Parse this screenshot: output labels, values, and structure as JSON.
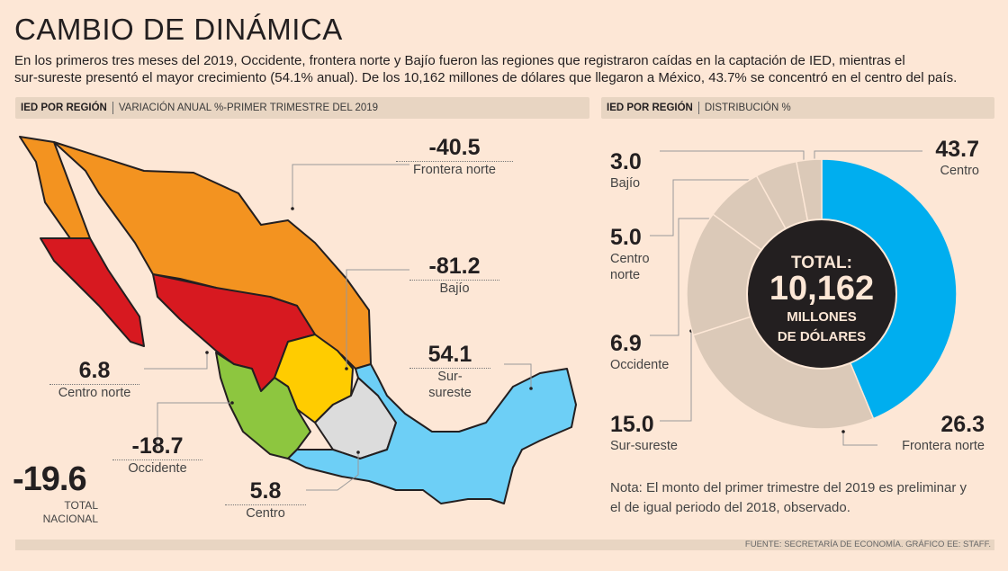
{
  "header": {
    "title": "CAMBIO DE DINÁMICA",
    "subtitle_line1": "En los primeros tres meses del 2019, Occidente, frontera norte y Bajío fueron las regiones que registraron caídas en la captación de IED, mientras el",
    "subtitle_line2": "sur-sureste presentó el mayor crecimiento (54.1% anual). De los 10,162 millones de dólares que llegaron a México, 43.7% se concentró en el centro del país."
  },
  "left_section": {
    "bold": "IED POR REGIÓN",
    "label": "VARIACIÓN ANUAL %-PRIMER TRIMESTRE DEL 2019"
  },
  "right_section": {
    "bold": "IED POR REGIÓN",
    "label": "DISTRIBUCIÓN %"
  },
  "colors": {
    "frontera_norte": "#f39320",
    "centro_norte": "#d71920",
    "bajio": "#ffcc00",
    "occidente": "#8dc63f",
    "centro": "#dcdcdc",
    "sur_sureste": "#6dcff6",
    "donut_highlight": "#00aeef",
    "donut_other": "#dbc9b8",
    "donut_center": "#231f20"
  },
  "chart_data": [
    {
      "type": "map",
      "title": "VARIACIÓN ANUAL %-PRIMER TRIMESTRE DEL 2019",
      "regions": [
        {
          "name": "Frontera norte",
          "value": "-40.5"
        },
        {
          "name": "Bajío",
          "value": "-81.2"
        },
        {
          "name": "Sur-sureste",
          "name_line1": "Sur-",
          "name_line2": "sureste",
          "value": "54.1"
        },
        {
          "name": "Centro norte",
          "value": "6.8"
        },
        {
          "name": "Occidente",
          "value": "-18.7"
        },
        {
          "name": "Centro",
          "value": "5.8"
        }
      ],
      "total": {
        "value": "-19.6",
        "label_line1": "TOTAL",
        "label_line2": "NACIONAL"
      }
    },
    {
      "type": "pie",
      "title": "DISTRIBUCIÓN %",
      "slices": [
        {
          "name": "Centro",
          "value": 43.7,
          "label": "43.7",
          "color": "#00aeef"
        },
        {
          "name": "Frontera norte",
          "value": 26.3,
          "label": "26.3",
          "color": "#dbc9b8"
        },
        {
          "name": "Sur-sureste",
          "value": 15.0,
          "label": "15.0",
          "color": "#dbc9b8"
        },
        {
          "name": "Occidente",
          "value": 6.9,
          "label": "6.9",
          "color": "#dbc9b8"
        },
        {
          "name": "Centro norte",
          "name_line1": "Centro",
          "name_line2": "norte",
          "value": 5.0,
          "label": "5.0",
          "color": "#dbc9b8"
        },
        {
          "name": "Bajío",
          "value": 3.0,
          "label": "3.0",
          "color": "#dbc9b8"
        }
      ],
      "center": {
        "line1": "TOTAL:",
        "line2": "10,162",
        "line3": "MILLONES",
        "line4": "DE DÓLARES"
      }
    }
  ],
  "note": {
    "line1": "Nota: El monto del primer trimestre del 2019 es preliminar y",
    "line2": "el de igual periodo del 2018, observado."
  },
  "footer": "FUENTE: SECRETARÍA DE ECONOMÍA. GRÁFICO EE: STAFF."
}
